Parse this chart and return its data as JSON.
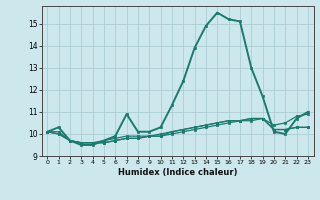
{
  "xlabel": "Humidex (Indice chaleur)",
  "bg_color": "#cce8ec",
  "line_color": "#1a7a6e",
  "grid_color": "#aacdd4",
  "xlim": [
    -0.5,
    23.5
  ],
  "ylim": [
    9.0,
    15.8
  ],
  "yticks": [
    9,
    10,
    11,
    12,
    13,
    14,
    15
  ],
  "xticks": [
    0,
    1,
    2,
    3,
    4,
    5,
    6,
    7,
    8,
    9,
    10,
    11,
    12,
    13,
    14,
    15,
    16,
    17,
    18,
    19,
    20,
    21,
    22,
    23
  ],
  "series": [
    [
      10.1,
      10.3,
      9.7,
      9.5,
      9.5,
      9.7,
      9.9,
      10.9,
      10.1,
      10.1,
      10.3,
      11.3,
      12.4,
      13.9,
      14.9,
      15.5,
      15.2,
      15.1,
      13.0,
      11.7,
      10.1,
      10.0,
      10.7,
      11.0
    ],
    [
      10.1,
      10.1,
      9.7,
      9.6,
      9.6,
      9.7,
      9.8,
      9.9,
      9.9,
      9.9,
      10.0,
      10.1,
      10.2,
      10.3,
      10.4,
      10.5,
      10.6,
      10.6,
      10.7,
      10.7,
      10.2,
      10.2,
      10.3,
      10.3
    ],
    [
      10.1,
      10.0,
      9.7,
      9.6,
      9.6,
      9.6,
      9.7,
      9.8,
      9.8,
      9.9,
      9.9,
      10.0,
      10.1,
      10.2,
      10.3,
      10.4,
      10.5,
      10.6,
      10.6,
      10.7,
      10.2,
      10.2,
      10.3,
      10.3
    ],
    [
      10.1,
      10.0,
      9.7,
      9.6,
      9.6,
      9.6,
      9.7,
      9.8,
      9.8,
      9.9,
      9.9,
      10.1,
      10.2,
      10.3,
      10.4,
      10.5,
      10.6,
      10.6,
      10.7,
      10.7,
      10.4,
      10.5,
      10.8,
      10.9
    ]
  ]
}
